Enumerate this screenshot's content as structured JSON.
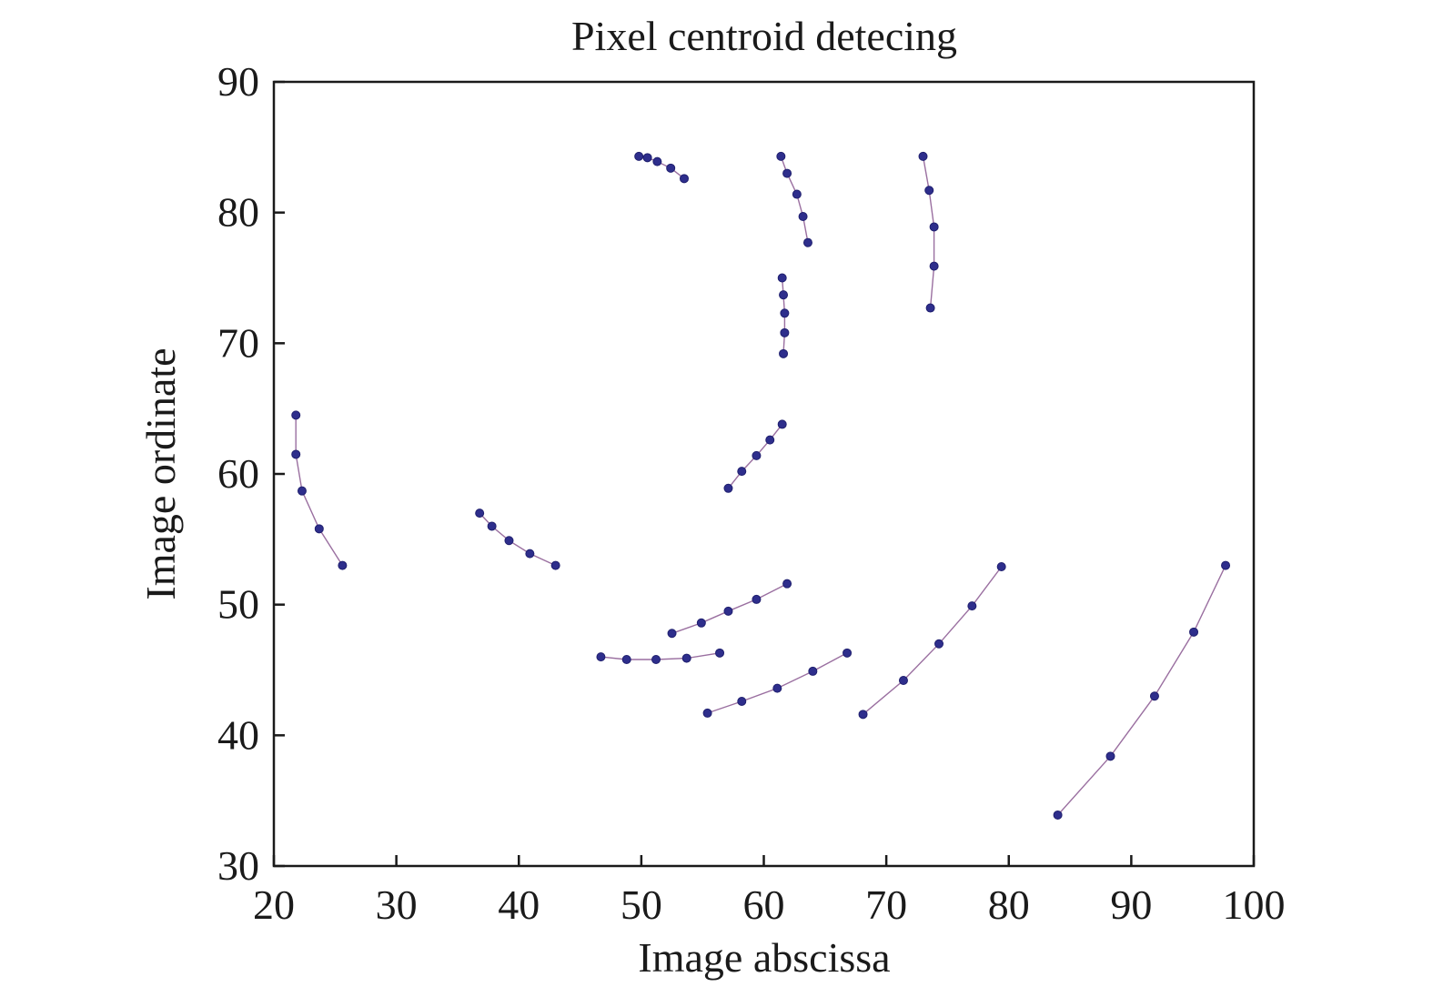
{
  "chart_data": {
    "type": "scatter",
    "title": "Pixel centroid detecing",
    "xlabel": "Image abscissa",
    "ylabel": "Image ordinate",
    "xlim": [
      20,
      100
    ],
    "ylim": [
      30,
      90
    ],
    "xticks": [
      20,
      30,
      40,
      50,
      60,
      70,
      80,
      90,
      100
    ],
    "yticks": [
      30,
      40,
      50,
      60,
      70,
      80,
      90
    ],
    "grid": false,
    "legend": "none",
    "colors": {
      "line": "#9a6fa0",
      "point": "#2e2e8c",
      "axis": "#1a1a1a"
    },
    "series": [
      {
        "x": [
          49.8,
          50.5,
          51.3,
          52.4,
          53.5
        ],
        "y": [
          84.3,
          84.2,
          83.9,
          83.4,
          82.6
        ]
      },
      {
        "x": [
          61.4,
          61.9,
          62.7,
          63.2,
          63.6
        ],
        "y": [
          84.3,
          83.0,
          81.4,
          79.7,
          77.7
        ]
      },
      {
        "x": [
          73.0,
          73.5,
          73.9,
          73.9,
          73.6
        ],
        "y": [
          84.3,
          81.7,
          78.9,
          75.9,
          72.7
        ]
      },
      {
        "x": [
          61.5,
          61.6,
          61.7,
          61.7,
          61.6
        ],
        "y": [
          75.0,
          73.7,
          72.3,
          70.8,
          69.2
        ]
      },
      {
        "x": [
          21.8,
          21.8,
          22.3,
          23.7,
          25.6
        ],
        "y": [
          64.5,
          61.5,
          58.7,
          55.8,
          53.0
        ]
      },
      {
        "x": [
          57.1,
          58.2,
          59.4,
          60.5,
          61.5
        ],
        "y": [
          58.9,
          60.2,
          61.4,
          62.6,
          63.8
        ]
      },
      {
        "x": [
          36.8,
          37.8,
          39.2,
          40.9,
          43.0
        ],
        "y": [
          57.0,
          56.0,
          54.9,
          53.9,
          53.0
        ]
      },
      {
        "x": [
          52.5,
          54.9,
          57.1,
          59.4,
          61.9
        ],
        "y": [
          47.8,
          48.6,
          49.5,
          50.4,
          51.6
        ]
      },
      {
        "x": [
          46.7,
          48.8,
          51.2,
          53.7,
          56.4
        ],
        "y": [
          46.0,
          45.8,
          45.8,
          45.9,
          46.3
        ]
      },
      {
        "x": [
          55.4,
          58.2,
          61.1,
          64.0,
          66.8
        ],
        "y": [
          41.7,
          42.6,
          43.6,
          44.9,
          46.3
        ]
      },
      {
        "x": [
          68.1,
          71.4,
          74.3,
          77.0,
          79.4
        ],
        "y": [
          41.6,
          44.2,
          47.0,
          49.9,
          52.9
        ]
      },
      {
        "x": [
          84.0,
          88.3,
          91.9,
          95.1,
          97.7
        ],
        "y": [
          33.9,
          38.4,
          43.0,
          47.9,
          53.0
        ]
      }
    ]
  }
}
